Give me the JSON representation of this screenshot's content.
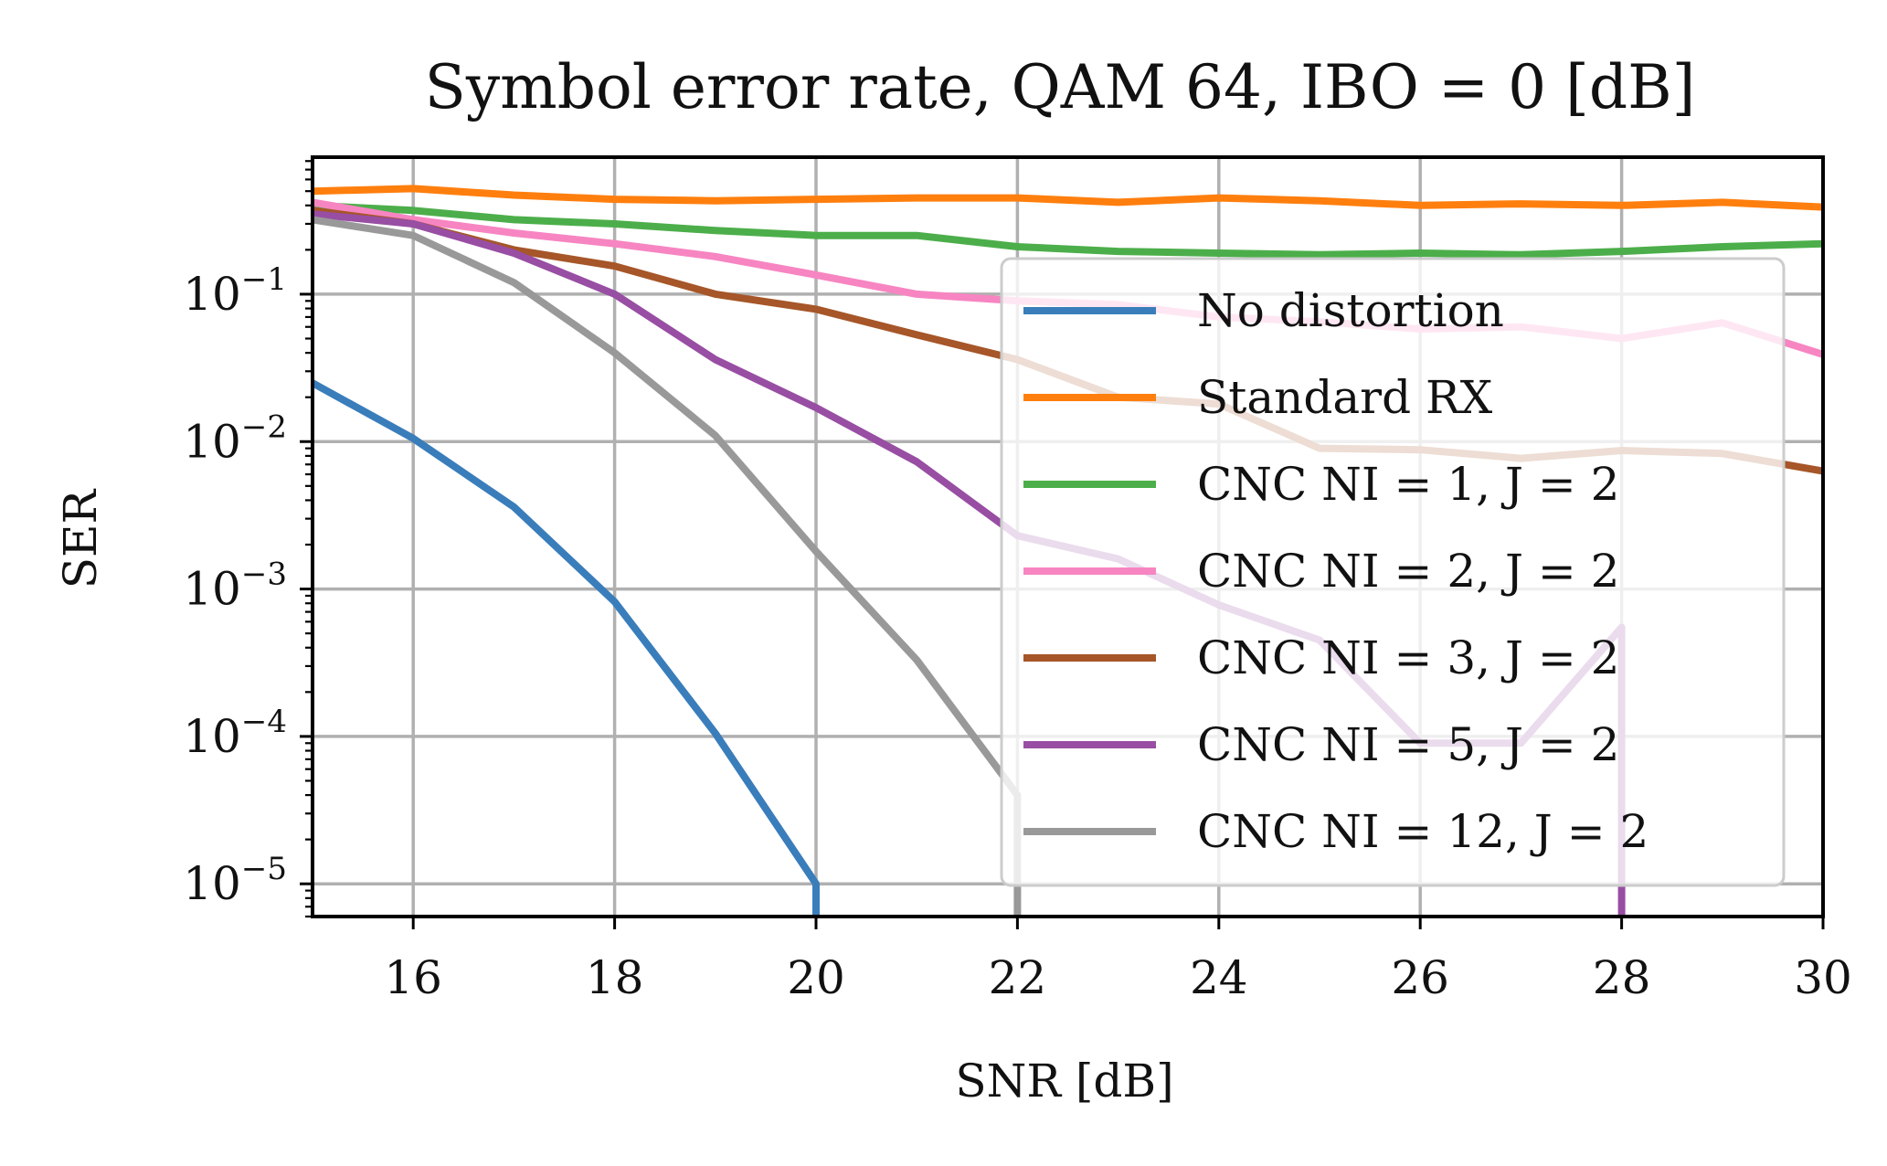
{
  "chart_data": {
    "type": "line",
    "title": "Symbol error rate, QAM 64, IBO = 0 [dB]",
    "xlabel": "SNR [dB]",
    "ylabel": "SER",
    "xlim": [
      15,
      30
    ],
    "ylim": [
      6e-06,
      0.85
    ],
    "yscale": "log",
    "grid": true,
    "legend_position": "right",
    "x_ticks": [
      "16",
      "18",
      "20",
      "22",
      "24",
      "26",
      "28",
      "30"
    ],
    "x_tick_values": [
      16,
      18,
      20,
      22,
      24,
      26,
      28,
      30
    ],
    "y_ticks": [
      {
        "value": 0.1,
        "base": "10",
        "exp": "−1"
      },
      {
        "value": 0.01,
        "base": "10",
        "exp": "−2"
      },
      {
        "value": 0.001,
        "base": "10",
        "exp": "−3"
      },
      {
        "value": 0.0001,
        "base": "10",
        "exp": "−4"
      },
      {
        "value": 1e-05,
        "base": "10",
        "exp": "−5"
      }
    ],
    "series": [
      {
        "name": "No distortion",
        "color": "#3a7dbb",
        "x": [
          15,
          16,
          17,
          18,
          19,
          20,
          20
        ],
        "y": [
          0.025,
          0.0105,
          0.0036,
          0.00082,
          0.000105,
          1e-05,
          1e-07
        ]
      },
      {
        "name": "Standard RX",
        "color": "#ff7f0e",
        "x": [
          15,
          16,
          17,
          18,
          19,
          20,
          21,
          22,
          23,
          24,
          25,
          26,
          27,
          28,
          29,
          30
        ],
        "y": [
          0.5,
          0.52,
          0.47,
          0.44,
          0.43,
          0.44,
          0.45,
          0.45,
          0.42,
          0.45,
          0.43,
          0.4,
          0.41,
          0.4,
          0.42,
          0.39
        ]
      },
      {
        "name": "CNC NI = 1, J = 2",
        "color": "#4cae4a",
        "x": [
          15,
          16,
          17,
          18,
          19,
          20,
          21,
          22,
          23,
          24,
          25,
          26,
          27,
          28,
          29,
          30
        ],
        "y": [
          0.4,
          0.37,
          0.32,
          0.3,
          0.27,
          0.25,
          0.25,
          0.21,
          0.195,
          0.19,
          0.185,
          0.19,
          0.185,
          0.195,
          0.21,
          0.22
        ]
      },
      {
        "name": "CNC NI = 2, J = 2",
        "color": "#f785c2",
        "x": [
          15,
          16,
          17,
          18,
          19,
          20,
          21,
          22,
          23,
          24,
          25,
          26,
          27,
          28,
          29,
          30
        ],
        "y": [
          0.42,
          0.32,
          0.26,
          0.22,
          0.18,
          0.135,
          0.1,
          0.09,
          0.085,
          0.07,
          0.065,
          0.058,
          0.06,
          0.05,
          0.064,
          0.039
        ]
      },
      {
        "name": "CNC NI = 3, J = 2",
        "color": "#a65628",
        "x": [
          15,
          16,
          17,
          18,
          19,
          20,
          21,
          22,
          23,
          24,
          25,
          26,
          27,
          28,
          29,
          30
        ],
        "y": [
          0.37,
          0.3,
          0.2,
          0.155,
          0.1,
          0.079,
          0.053,
          0.036,
          0.02,
          0.018,
          0.009,
          0.0088,
          0.0077,
          0.0087,
          0.0083,
          0.0063
        ]
      },
      {
        "name": "CNC NI = 5, J = 2",
        "color": "#984ea3",
        "x": [
          15,
          16,
          17,
          18,
          19,
          20,
          21,
          22,
          23,
          24,
          25,
          26,
          27,
          28,
          28
        ],
        "y": [
          0.35,
          0.3,
          0.19,
          0.1,
          0.036,
          0.017,
          0.0073,
          0.0023,
          0.0016,
          0.00078,
          0.00045,
          9e-05,
          9e-05,
          0.00055,
          1e-07
        ]
      },
      {
        "name": "CNC NI = 12, J = 2",
        "color": "#999999",
        "x": [
          15,
          16,
          17,
          18,
          19,
          20,
          21,
          22,
          22
        ],
        "y": [
          0.32,
          0.25,
          0.12,
          0.04,
          0.011,
          0.0018,
          0.00033,
          4e-05,
          1e-07
        ]
      }
    ]
  }
}
